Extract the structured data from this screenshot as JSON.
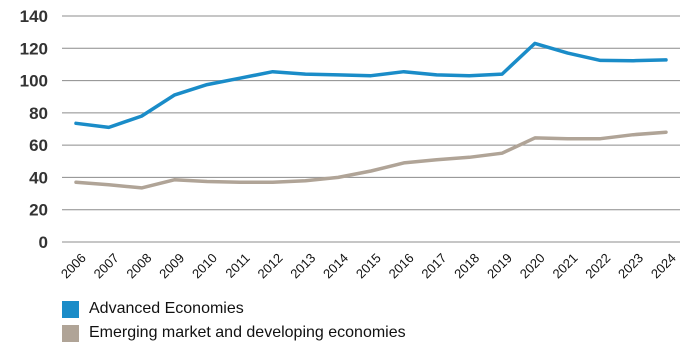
{
  "chart_data": {
    "type": "line",
    "title": "",
    "xlabel": "",
    "ylabel": "",
    "ylim": [
      0,
      140
    ],
    "yticks": [
      0,
      20,
      40,
      60,
      80,
      100,
      120,
      140
    ],
    "x": [
      "2006",
      "2007",
      "2008",
      "2009",
      "2010",
      "2011",
      "2012",
      "2013",
      "2014",
      "2015",
      "2016",
      "2017",
      "2018",
      "2019",
      "2020",
      "2021",
      "2022",
      "2023",
      "2024"
    ],
    "grid": true,
    "legend_position": "bottom-left",
    "series": [
      {
        "name": "Advanced Economies",
        "color": "#1a8cc8",
        "values": [
          73.5,
          71,
          78,
          91,
          97.5,
          101.5,
          105.5,
          104,
          103.5,
          103,
          105.5,
          103.5,
          103,
          104,
          123,
          117,
          112.5,
          112.3,
          112.8
        ]
      },
      {
        "name": "Emerging market and developing economies",
        "color": "#b0a497",
        "values": [
          37,
          35.5,
          33.5,
          38.5,
          37.5,
          37,
          37,
          38,
          40,
          44,
          49,
          51,
          52.5,
          55,
          64.5,
          64,
          64,
          66.5,
          68
        ]
      }
    ]
  }
}
